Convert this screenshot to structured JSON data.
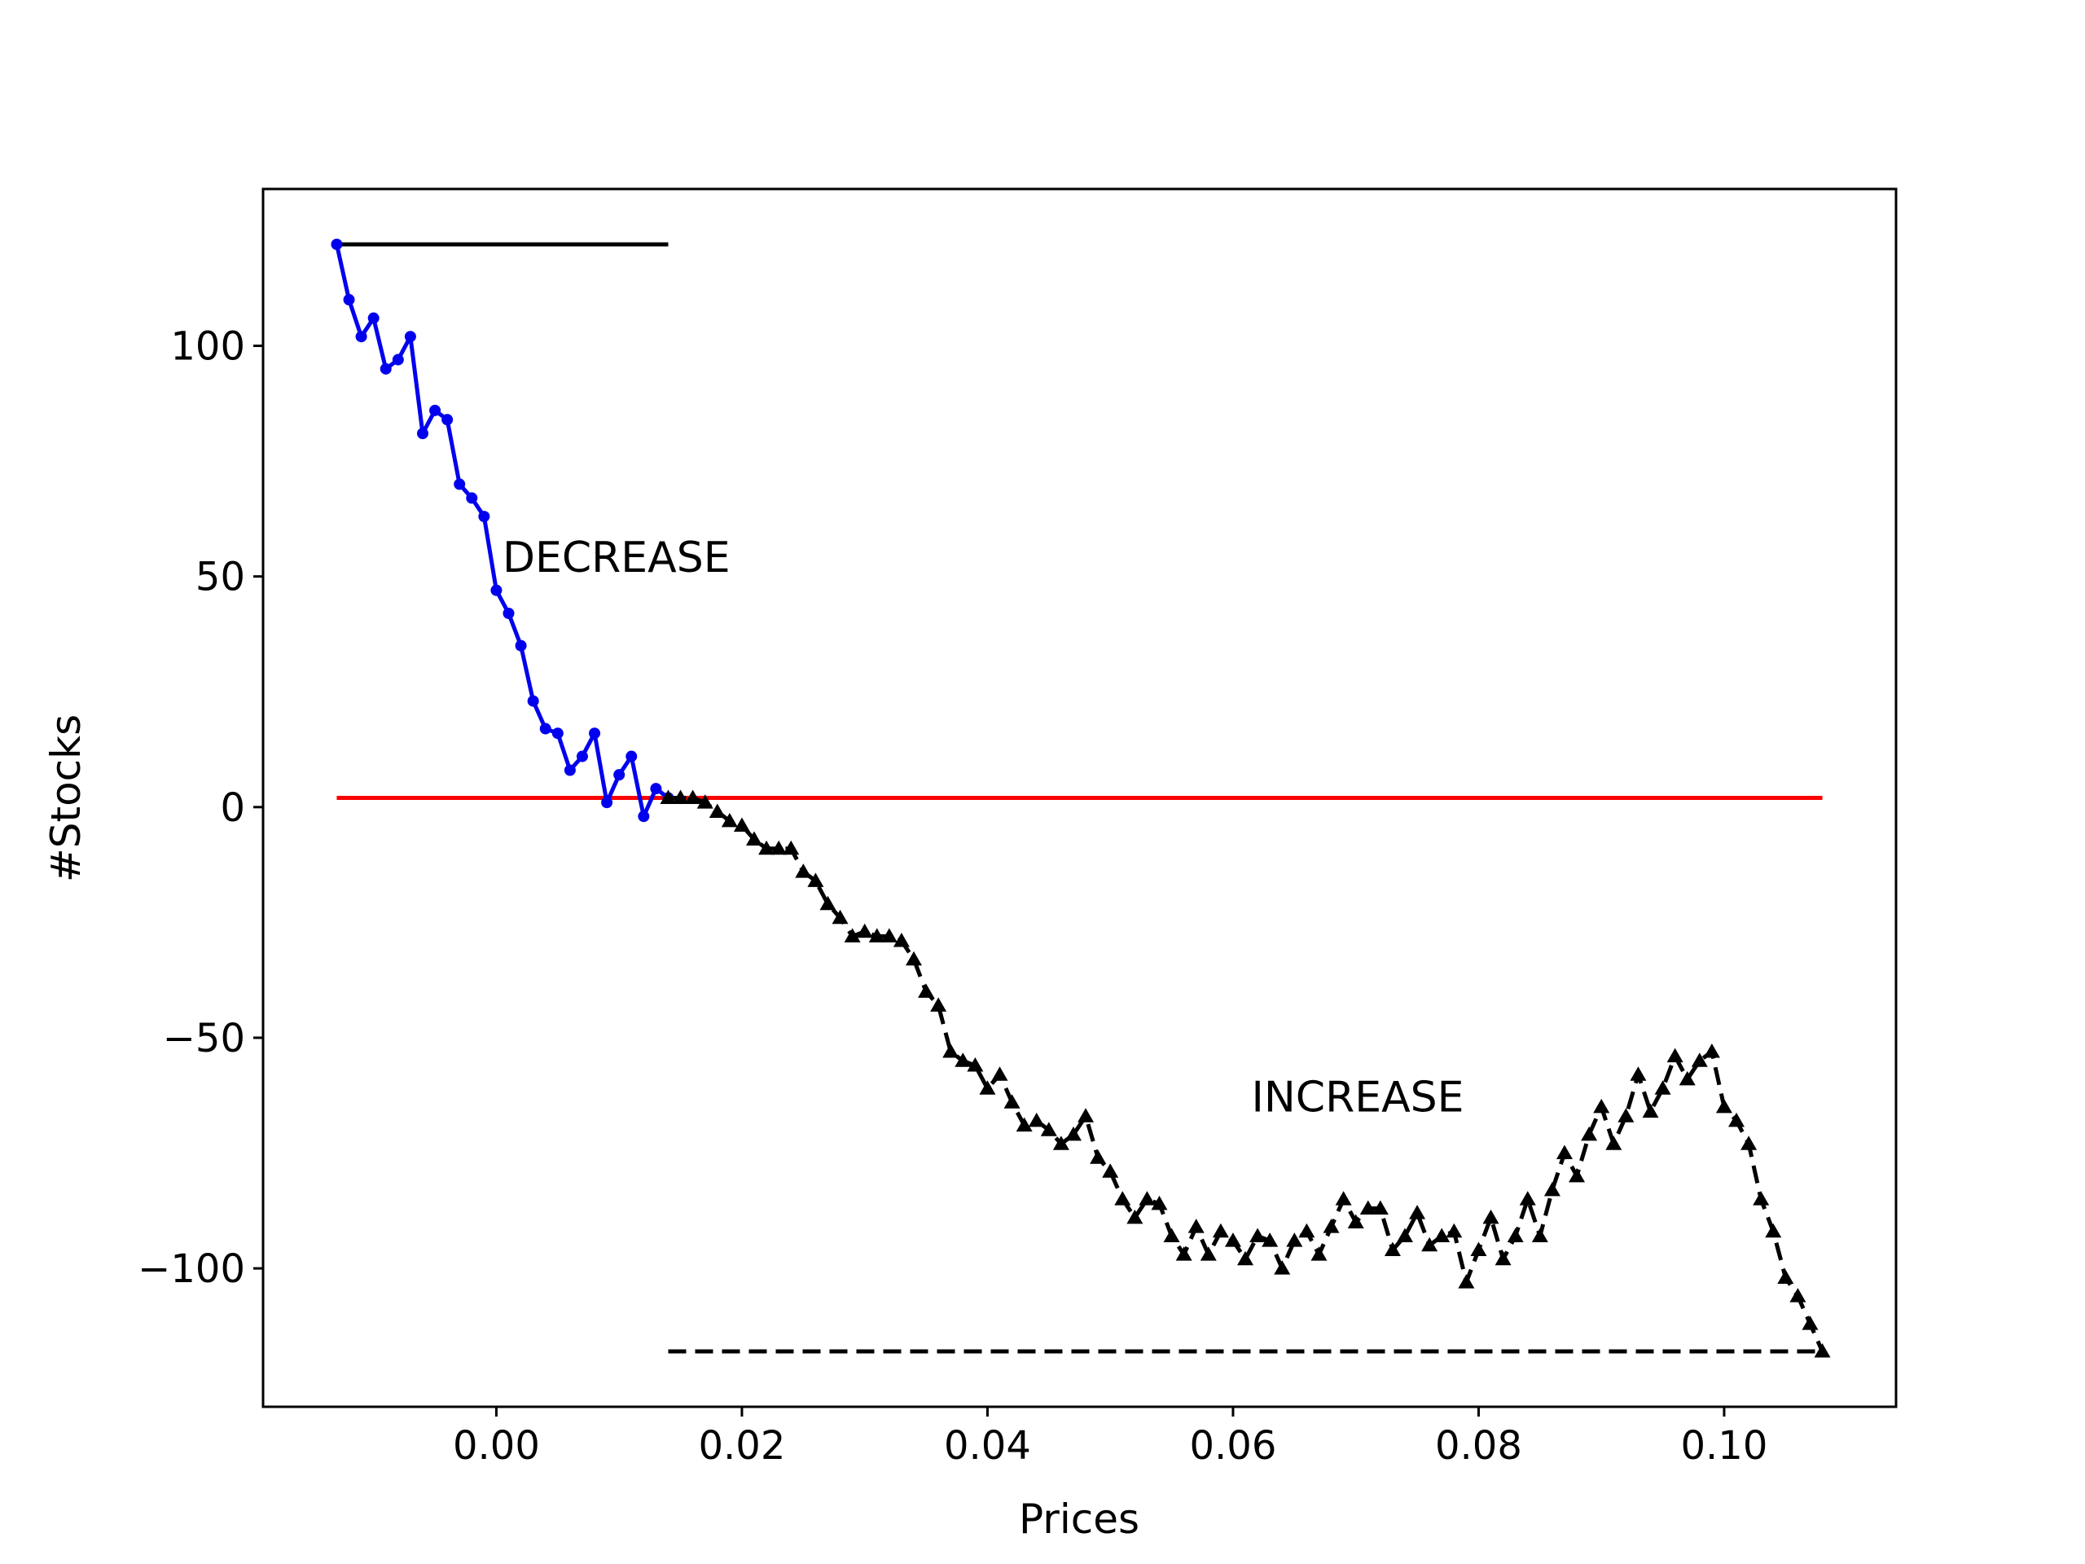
{
  "chart_data": {
    "type": "line",
    "title": "",
    "xlabel": "Prices",
    "ylabel": "#Stocks",
    "xlim": [
      -0.019,
      0.114
    ],
    "ylim": [
      -130,
      134
    ],
    "x_ticks": [
      0.0,
      0.02,
      0.04,
      0.06,
      0.08,
      0.1
    ],
    "x_tick_labels": [
      "0.00",
      "0.02",
      "0.04",
      "0.06",
      "0.08",
      "0.10"
    ],
    "y_ticks": [
      100,
      50,
      0,
      -50,
      -100
    ],
    "y_tick_labels": [
      "100",
      "50",
      "0",
      "−50",
      "−100"
    ],
    "grid": false,
    "annotations": [
      {
        "text": "DECREASE",
        "x": 0.0005,
        "y": 51
      },
      {
        "text": "INCREASE",
        "x": 0.0615,
        "y": -66
      }
    ],
    "series": [
      {
        "color": "#0000ee",
        "style": "solid",
        "marker": "dot",
        "points": [
          [
            -0.013,
            122
          ],
          [
            -0.012,
            110
          ],
          [
            -0.011,
            102
          ],
          [
            -0.01,
            106
          ],
          [
            -0.009,
            95
          ],
          [
            -0.008,
            97
          ],
          [
            -0.007,
            102
          ],
          [
            -0.006,
            81
          ],
          [
            -0.005,
            86
          ],
          [
            -0.004,
            84
          ],
          [
            -0.003,
            70
          ],
          [
            -0.002,
            67
          ],
          [
            -0.001,
            63
          ],
          [
            0.0,
            47
          ],
          [
            0.001,
            42
          ],
          [
            0.002,
            35
          ],
          [
            0.003,
            23
          ],
          [
            0.004,
            17
          ],
          [
            0.005,
            16
          ],
          [
            0.006,
            8
          ],
          [
            0.007,
            11
          ],
          [
            0.008,
            16
          ],
          [
            0.009,
            1
          ],
          [
            0.01,
            7
          ],
          [
            0.011,
            11
          ],
          [
            0.012,
            -2
          ],
          [
            0.013,
            4
          ],
          [
            0.014,
            2
          ]
        ]
      },
      {
        "color": "#000000",
        "style": "dashed",
        "marker": "triangle",
        "points": [
          [
            0.014,
            2
          ],
          [
            0.015,
            2
          ],
          [
            0.016,
            2
          ],
          [
            0.017,
            1
          ],
          [
            0.018,
            -1
          ],
          [
            0.019,
            -3
          ],
          [
            0.02,
            -4
          ],
          [
            0.021,
            -7
          ],
          [
            0.022,
            -9
          ],
          [
            0.023,
            -9
          ],
          [
            0.024,
            -9
          ],
          [
            0.025,
            -14
          ],
          [
            0.026,
            -16
          ],
          [
            0.027,
            -21
          ],
          [
            0.028,
            -24
          ],
          [
            0.029,
            -28
          ],
          [
            0.03,
            -27
          ],
          [
            0.031,
            -28
          ],
          [
            0.032,
            -28
          ],
          [
            0.033,
            -29
          ],
          [
            0.034,
            -33
          ],
          [
            0.035,
            -40
          ],
          [
            0.036,
            -43
          ],
          [
            0.037,
            -53
          ],
          [
            0.038,
            -55
          ],
          [
            0.039,
            -56
          ],
          [
            0.04,
            -61
          ],
          [
            0.041,
            -58
          ],
          [
            0.042,
            -64
          ],
          [
            0.043,
            -69
          ],
          [
            0.044,
            -68
          ],
          [
            0.045,
            -70
          ],
          [
            0.046,
            -73
          ],
          [
            0.047,
            -71
          ],
          [
            0.048,
            -67
          ],
          [
            0.049,
            -76
          ],
          [
            0.05,
            -79
          ],
          [
            0.051,
            -85
          ],
          [
            0.052,
            -89
          ],
          [
            0.053,
            -85
          ],
          [
            0.054,
            -86
          ],
          [
            0.055,
            -93
          ],
          [
            0.056,
            -97
          ],
          [
            0.057,
            -91
          ],
          [
            0.058,
            -97
          ],
          [
            0.059,
            -92
          ],
          [
            0.06,
            -94
          ],
          [
            0.061,
            -98
          ],
          [
            0.062,
            -93
          ],
          [
            0.063,
            -94
          ],
          [
            0.064,
            -100
          ],
          [
            0.065,
            -94
          ],
          [
            0.066,
            -92
          ],
          [
            0.067,
            -97
          ],
          [
            0.068,
            -91
          ],
          [
            0.069,
            -85
          ],
          [
            0.07,
            -90
          ],
          [
            0.071,
            -87
          ],
          [
            0.072,
            -87
          ],
          [
            0.073,
            -96
          ],
          [
            0.074,
            -93
          ],
          [
            0.075,
            -88
          ],
          [
            0.076,
            -95
          ],
          [
            0.077,
            -93
          ],
          [
            0.078,
            -92
          ],
          [
            0.079,
            -103
          ],
          [
            0.08,
            -96
          ],
          [
            0.081,
            -89
          ],
          [
            0.082,
            -98
          ],
          [
            0.083,
            -93
          ],
          [
            0.084,
            -85
          ],
          [
            0.085,
            -93
          ],
          [
            0.086,
            -83
          ],
          [
            0.087,
            -75
          ],
          [
            0.088,
            -80
          ],
          [
            0.089,
            -71
          ],
          [
            0.09,
            -65
          ],
          [
            0.091,
            -73
          ],
          [
            0.092,
            -67
          ],
          [
            0.093,
            -58
          ],
          [
            0.094,
            -66
          ],
          [
            0.095,
            -61
          ],
          [
            0.096,
            -54
          ],
          [
            0.097,
            -59
          ],
          [
            0.098,
            -55
          ],
          [
            0.099,
            -53
          ],
          [
            0.1,
            -65
          ],
          [
            0.101,
            -68
          ],
          [
            0.102,
            -73
          ],
          [
            0.103,
            -85
          ],
          [
            0.104,
            -92
          ],
          [
            0.105,
            -102
          ],
          [
            0.106,
            -106
          ],
          [
            0.107,
            -112
          ],
          [
            0.108,
            -118
          ]
        ]
      }
    ],
    "reference_lines": [
      {
        "color": "#000000",
        "style": "solid",
        "x1": -0.013,
        "y1": 122,
        "x2": 0.014,
        "y2": 122
      },
      {
        "color": "#ff0000",
        "style": "solid",
        "x1": -0.013,
        "y1": 2,
        "x2": 0.108,
        "y2": 2
      },
      {
        "color": "#000000",
        "style": "dashed",
        "x1": 0.014,
        "y1": -118,
        "x2": 0.108,
        "y2": -118
      }
    ]
  }
}
